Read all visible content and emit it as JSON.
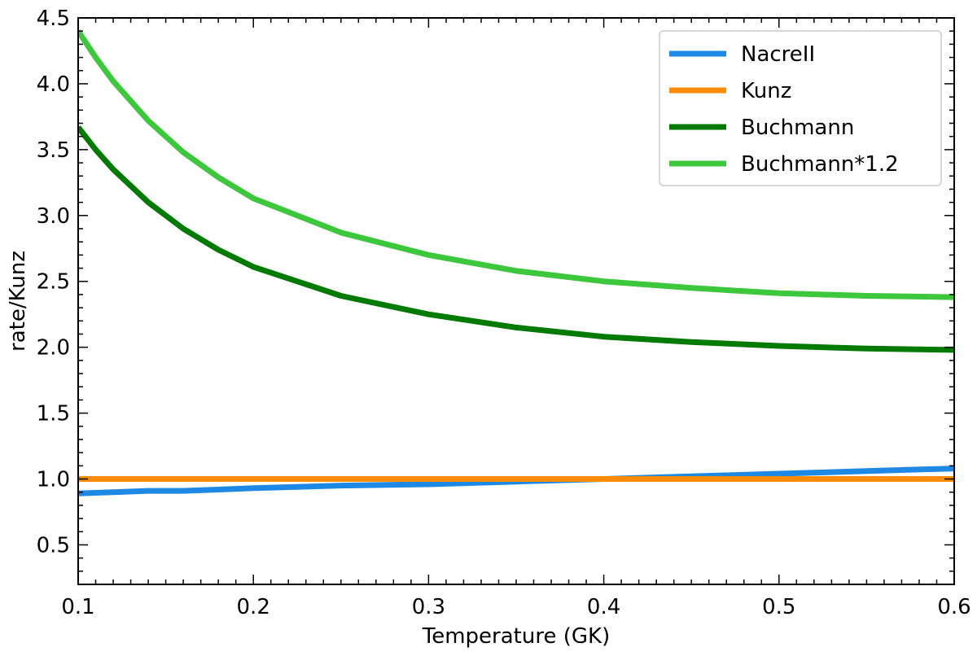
{
  "chart_data": {
    "type": "line",
    "xlabel": "Temperature (GK)",
    "ylabel": "rate/Kunz",
    "xlim": [
      0.1,
      0.6
    ],
    "ylim": [
      0.2,
      4.5
    ],
    "x_ticks": [
      0.1,
      0.2,
      0.3,
      0.4,
      0.5,
      0.6
    ],
    "x_tick_labels": [
      "0.1",
      "0.2",
      "0.3",
      "0.4",
      "0.5",
      "0.6"
    ],
    "y_ticks": [
      0.5,
      1.0,
      1.5,
      2.0,
      2.5,
      3.0,
      3.5,
      4.0,
      4.5
    ],
    "y_tick_labels": [
      "0.5",
      "1.0",
      "1.5",
      "2.0",
      "2.5",
      "3.0",
      "3.5",
      "4.0",
      "4.5"
    ],
    "grid": false,
    "legend_position": "top-right",
    "series": [
      {
        "name": "NacreII",
        "color": "#1e88e5",
        "x": [
          0.1,
          0.12,
          0.14,
          0.16,
          0.18,
          0.2,
          0.25,
          0.3,
          0.35,
          0.4,
          0.45,
          0.5,
          0.55,
          0.6
        ],
        "y": [
          0.89,
          0.9,
          0.91,
          0.91,
          0.92,
          0.93,
          0.95,
          0.96,
          0.98,
          1.0,
          1.02,
          1.04,
          1.06,
          1.08
        ]
      },
      {
        "name": "Kunz",
        "color": "#ff8c00",
        "x": [
          0.1,
          0.6
        ],
        "y": [
          1.0,
          1.0
        ]
      },
      {
        "name": "Buchmann",
        "color": "#007a00",
        "x": [
          0.1,
          0.11,
          0.12,
          0.14,
          0.16,
          0.18,
          0.2,
          0.25,
          0.3,
          0.35,
          0.4,
          0.45,
          0.5,
          0.55,
          0.6
        ],
        "y": [
          3.67,
          3.5,
          3.35,
          3.1,
          2.9,
          2.74,
          2.61,
          2.39,
          2.25,
          2.15,
          2.08,
          2.04,
          2.01,
          1.99,
          1.98
        ]
      },
      {
        "name": "Buchmann*1.2",
        "color": "#3cc73c",
        "x": [
          0.1,
          0.11,
          0.12,
          0.14,
          0.16,
          0.18,
          0.2,
          0.25,
          0.3,
          0.35,
          0.4,
          0.45,
          0.5,
          0.55,
          0.6
        ],
        "y": [
          4.4,
          4.2,
          4.02,
          3.72,
          3.48,
          3.29,
          3.13,
          2.87,
          2.7,
          2.58,
          2.5,
          2.45,
          2.41,
          2.39,
          2.38
        ]
      }
    ]
  }
}
